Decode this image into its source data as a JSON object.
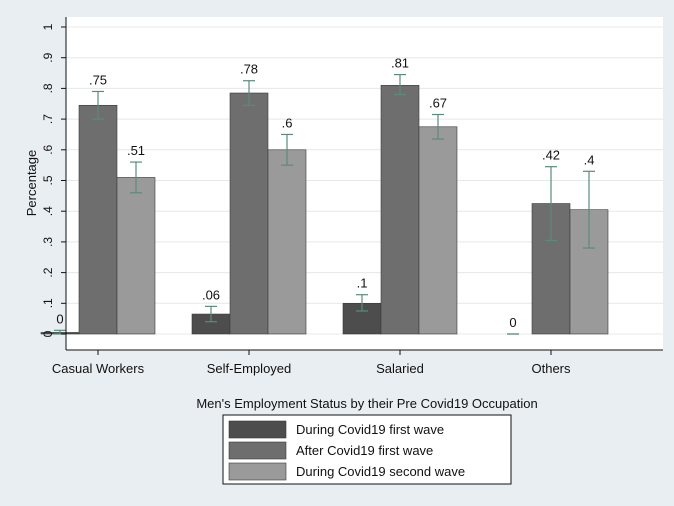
{
  "chart_data": {
    "type": "bar",
    "xlabel": "Men's Employment Status by their Pre Covid19 Occupation",
    "ylabel": "Percentage",
    "ylim": [
      0,
      1
    ],
    "yticks": [
      0,
      0.1,
      0.2,
      0.3,
      0.4,
      0.5,
      0.6,
      0.7,
      0.8,
      0.9,
      1
    ],
    "ytick_labels": [
      "0",
      ".1",
      ".2",
      ".3",
      ".4",
      ".5",
      ".6",
      ".7",
      ".8",
      ".9",
      "1"
    ],
    "grid": true,
    "legend_position": "bottom",
    "categories": [
      "Casual Workers",
      "Self-Employed",
      "Salaried",
      "Others"
    ],
    "series": [
      {
        "name": "During Covid19 first wave",
        "color": "#4d4d4d",
        "values": [
          0.005,
          0.065,
          0.1,
          0.0
        ],
        "labels": [
          "0",
          ".06",
          ".1",
          "0"
        ],
        "error_low": [
          0.0,
          0.04,
          0.075,
          0.0
        ],
        "error_high": [
          0.012,
          0.09,
          0.128,
          0.0
        ]
      },
      {
        "name": "After Covid19 first wave",
        "color": "#6e6e6e",
        "values": [
          0.745,
          0.785,
          0.81,
          0.425
        ],
        "labels": [
          ".75",
          ".78",
          ".81",
          ".42"
        ],
        "error_low": [
          0.7,
          0.745,
          0.78,
          0.305
        ],
        "error_high": [
          0.79,
          0.825,
          0.845,
          0.545
        ]
      },
      {
        "name": "During Covid19 second wave",
        "color": "#9a9a9a",
        "values": [
          0.51,
          0.6,
          0.675,
          0.405
        ],
        "labels": [
          ".51",
          ".6",
          ".67",
          ".4"
        ],
        "error_low": [
          0.46,
          0.55,
          0.635,
          0.28
        ],
        "error_high": [
          0.56,
          0.65,
          0.715,
          0.53
        ]
      }
    ],
    "colors": {
      "background": "#e9eef2",
      "plot_background": "#ffffff",
      "gridline": "#e4e8eb",
      "error_bar": "#5b8a7e",
      "axis": "#111111"
    }
  }
}
